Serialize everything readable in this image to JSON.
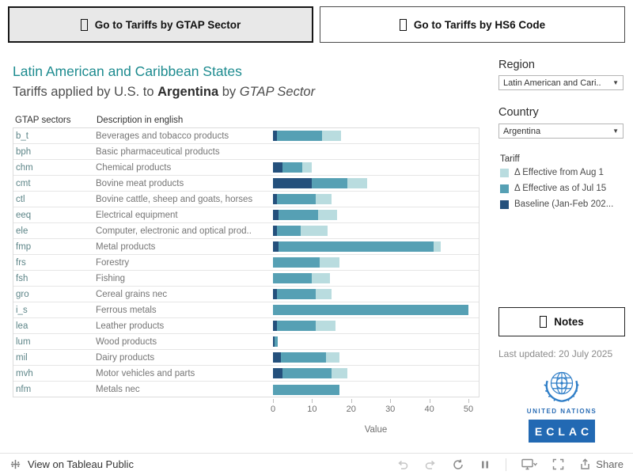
{
  "buttons": {
    "gtap": "Go to Tariffs by GTAP Sector",
    "hs6": "Go to Tariffs by HS6 Code"
  },
  "header": {
    "title": "Latin American and Caribbean States",
    "subtitle_prefix": "Tariffs applied by U.S. to ",
    "subtitle_country": "Argentina",
    "subtitle_mid": " by ",
    "subtitle_italic": "GTAP Sector"
  },
  "filters": {
    "region_label": "Region",
    "region_value": "Latin American and Cari..",
    "country_label": "Country",
    "country_value": "Argentina"
  },
  "legend": {
    "title": "Tariff",
    "items": [
      {
        "label": "Δ Effective from Aug 1",
        "color": "#b9dcdf"
      },
      {
        "label": "Δ Effective as of Jul 15",
        "color": "#56a0b4"
      },
      {
        "label": "Baseline (Jan-Feb 202...",
        "color": "#24507c"
      }
    ]
  },
  "notes_button": "Notes",
  "last_updated": "Last updated: 20 July 2025",
  "logos": {
    "un_text": "UNITED NATIONS",
    "eclac_text": "ECLAC"
  },
  "footer": {
    "view_text": "View on Tableau Public",
    "share_label": "Share"
  },
  "chart_data": {
    "type": "bar",
    "orientation": "horizontal",
    "title": "Tariffs applied by U.S. to Argentina by GTAP Sector",
    "xlabel": "Value",
    "xlim": [
      0,
      50
    ],
    "xticks": [
      0,
      10,
      20,
      30,
      40,
      50
    ],
    "col_headers": [
      "GTAP sectors",
      "Description in english"
    ],
    "series_stack_order": [
      "baseline",
      "jul15",
      "aug1"
    ],
    "series_names": {
      "baseline": "Baseline (Jan-Feb 202...",
      "jul15": "Δ Effective as of Jul 15",
      "aug1": "Δ Effective from Aug 1"
    },
    "colors": {
      "baseline": "#24507c",
      "jul15": "#56a0b4",
      "aug1": "#b9dcdf"
    },
    "rows": [
      {
        "code": "b_t",
        "desc": "Beverages and tobacco products",
        "baseline": 1,
        "jul15": 11.5,
        "aug1": 5
      },
      {
        "code": "bph",
        "desc": "Basic pharmaceutical products",
        "baseline": 0,
        "jul15": 0,
        "aug1": 0
      },
      {
        "code": "chm",
        "desc": "Chemical products",
        "baseline": 2.5,
        "jul15": 5,
        "aug1": 2.5
      },
      {
        "code": "cmt",
        "desc": "Bovine meat products",
        "baseline": 10,
        "jul15": 9,
        "aug1": 5
      },
      {
        "code": "ctl",
        "desc": "Bovine cattle, sheep and goats, horses",
        "baseline": 1,
        "jul15": 10,
        "aug1": 4
      },
      {
        "code": "eeq",
        "desc": "Electrical equipment",
        "baseline": 1.5,
        "jul15": 10,
        "aug1": 5
      },
      {
        "code": "ele",
        "desc": "Computer, electronic and optical prod..",
        "baseline": 1,
        "jul15": 6,
        "aug1": 7
      },
      {
        "code": "fmp",
        "desc": "Metal products",
        "baseline": 1.5,
        "jul15": 39.5,
        "aug1": 2
      },
      {
        "code": "frs",
        "desc": "Forestry",
        "baseline": 0,
        "jul15": 12,
        "aug1": 5
      },
      {
        "code": "fsh",
        "desc": "Fishing",
        "baseline": 0,
        "jul15": 10,
        "aug1": 4.5
      },
      {
        "code": "gro",
        "desc": "Cereal grains nec",
        "baseline": 1,
        "jul15": 10,
        "aug1": 4
      },
      {
        "code": "i_s",
        "desc": "Ferrous metals",
        "baseline": 0,
        "jul15": 50,
        "aug1": 0
      },
      {
        "code": "lea",
        "desc": "Leather products",
        "baseline": 1,
        "jul15": 10,
        "aug1": 5
      },
      {
        "code": "lum",
        "desc": "Wood products",
        "baseline": 0.4,
        "jul15": 0.8,
        "aug1": 0
      },
      {
        "code": "mil",
        "desc": "Dairy products",
        "baseline": 2,
        "jul15": 11.5,
        "aug1": 3.5
      },
      {
        "code": "mvh",
        "desc": "Motor vehicles and parts",
        "baseline": 2.5,
        "jul15": 12.5,
        "aug1": 4
      },
      {
        "code": "nfm",
        "desc": "Metals nec",
        "baseline": 0,
        "jul15": 17,
        "aug1": 0
      }
    ]
  }
}
